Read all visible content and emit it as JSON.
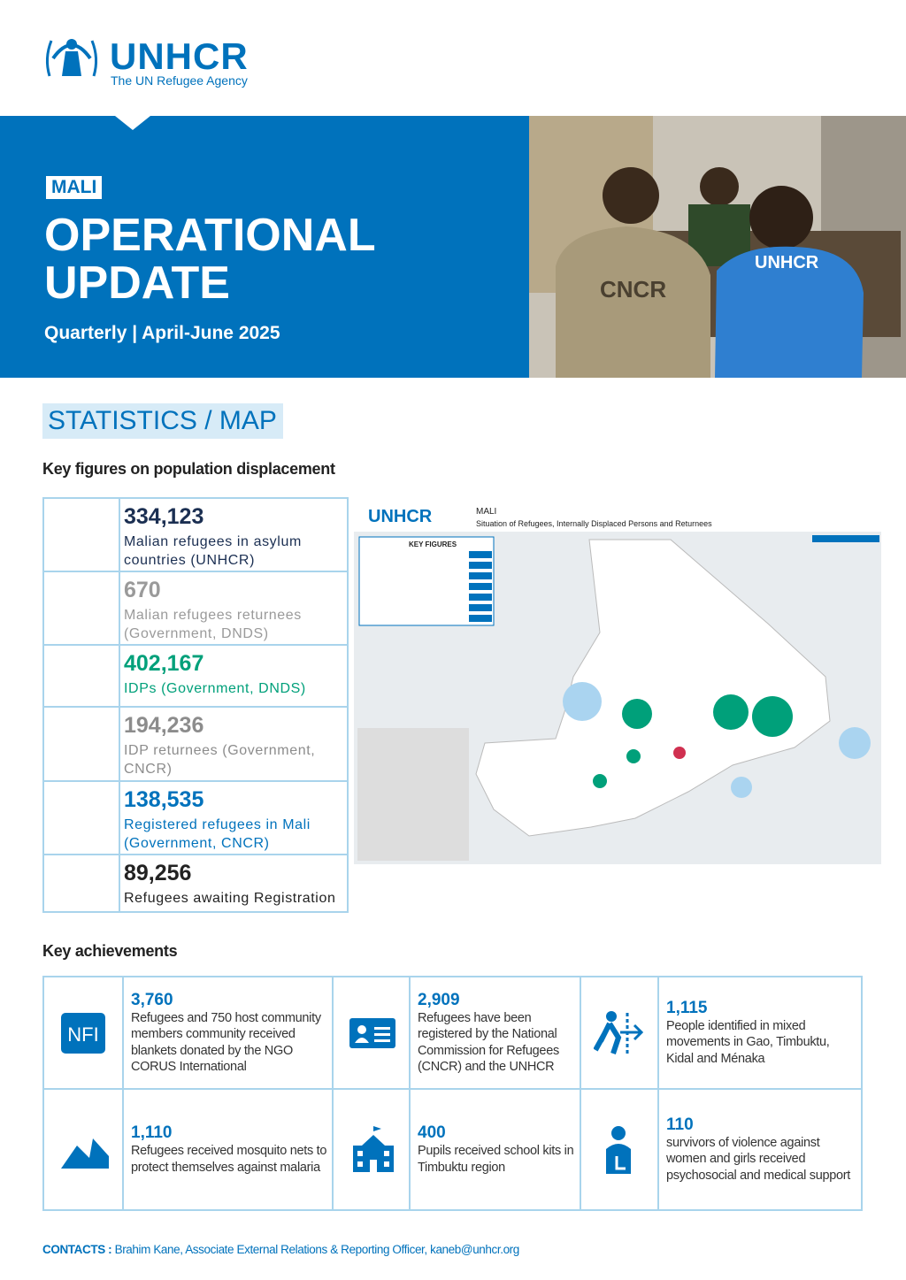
{
  "header": {
    "logo_name": "UNHCR",
    "logo_tagline": "The UN Refugee Agency"
  },
  "banner": {
    "country": "MALI",
    "title_line1": "OPERATIONAL",
    "title_line2": "UPDATE",
    "subtitle": "Quarterly | April-June 2025"
  },
  "photo": {
    "vest_labels": [
      "CNCR",
      "UNHCR"
    ]
  },
  "section": {
    "heading": "STATISTICS / MAP"
  },
  "key_figures": {
    "heading": "Key figures on population displacement",
    "items": [
      {
        "value": "334,123",
        "label": "Malian refugees in asylum countries (UNHCR)",
        "color": "#1b2f52"
      },
      {
        "value": "670",
        "label": "Malian refugees returnees (Government, DNDS)",
        "color": "#9a9a9a"
      },
      {
        "value": "402,167",
        "label": "IDPs (Government, DNDS)",
        "color": "#00a07a"
      },
      {
        "value": "194,236",
        "label": "IDP returnees (Government, CNCR)",
        "color": "#8c8c8c"
      },
      {
        "value": "138,535",
        "label": "Registered refugees in Mali (Government, CNCR)",
        "color": "#0072bc"
      },
      {
        "value": "89,256",
        "label": "Refugees awaiting Registration",
        "color": "#222222"
      }
    ]
  },
  "map": {
    "org": "UNHCR",
    "country": "MALI",
    "subtitle": "Situation of Refugees, Internally Displaced Persons and Returnees",
    "panel_heading": "KEY FIGURES"
  },
  "achievements": {
    "heading": "Key achievements",
    "items": [
      {
        "icon_text": "NFI",
        "value": "3,760",
        "text": "Refugees and 750 host community members community received blankets donated by the NGO CORUS International"
      },
      {
        "value": "2,909",
        "text": "Refugees have been registered by the National Commission for Refugees (CNCR) and the UNHCR"
      },
      {
        "value": "1,115",
        "text": "People identified in mixed movements in Gao, Timbuktu, Kidal and Ménaka"
      },
      {
        "value": "1,110",
        "text": "Refugees received mosquito nets to protect themselves against malaria"
      },
      {
        "value": "400",
        "text": "Pupils received school kits in Timbuktu region"
      },
      {
        "value": "110",
        "text": "survivors of violence against women and girls received psychosocial and medical support"
      }
    ]
  },
  "contacts": {
    "label": "CONTACTS :",
    "text": "Brahim Kane, Associate External Relations & Reporting Officer, kaneb@unhcr.org"
  }
}
